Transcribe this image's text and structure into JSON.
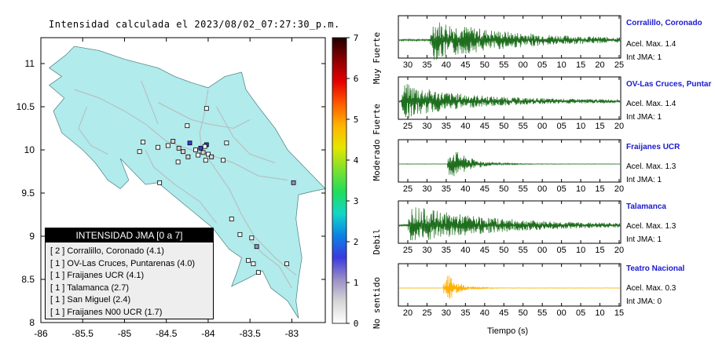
{
  "title": "Intensidad calculada el 2023/08/02_07:27:30_p.m.",
  "colors": {
    "land": "#b1ebec",
    "road": "#b9b9b9",
    "waveform_green": "#1e6e1e",
    "waveform_orange": "#ffb000",
    "station_name": "#1a1ad0"
  },
  "chart_data": [
    {
      "type": "scatter",
      "title": "Intensidad calculada el 2023/08/02_07:27:30_p.m.",
      "xlabel": "",
      "ylabel": "",
      "xlim": [
        -86,
        -82.6
      ],
      "ylim": [
        8,
        11.3
      ],
      "x_ticks": [
        "-86",
        "-85.5",
        "-85",
        "-84.5",
        "-84",
        "-83.5",
        "-83"
      ],
      "y_ticks": [
        "8",
        "8.5",
        "9",
        "9.5",
        "10",
        "10.5",
        "11"
      ],
      "marker": "square",
      "points": [
        {
          "lon": -84.48,
          "lat": 10.05,
          "intensity": 0.2
        },
        {
          "lon": -84.42,
          "lat": 10.1,
          "intensity": 0.3
        },
        {
          "lon": -84.35,
          "lat": 10.02,
          "intensity": 0.5
        },
        {
          "lon": -84.3,
          "lat": 9.98,
          "intensity": 0.8
        },
        {
          "lon": -84.22,
          "lat": 10.08,
          "intensity": 1.4
        },
        {
          "lon": -84.15,
          "lat": 10.0,
          "intensity": 0.2
        },
        {
          "lon": -84.12,
          "lat": 9.94,
          "intensity": 0.2
        },
        {
          "lon": -84.09,
          "lat": 10.02,
          "intensity": 1.6
        },
        {
          "lon": -84.06,
          "lat": 9.97,
          "intensity": 0.4
        },
        {
          "lon": -84.02,
          "lat": 10.06,
          "intensity": 1.8
        },
        {
          "lon": -84.0,
          "lat": 9.95,
          "intensity": 0.2
        },
        {
          "lon": -83.96,
          "lat": 9.92,
          "intensity": 0.3
        },
        {
          "lon": -84.04,
          "lat": 10.04,
          "intensity": 0.2
        },
        {
          "lon": -84.24,
          "lat": 9.92,
          "intensity": 0.3
        },
        {
          "lon": -84.36,
          "lat": 9.86,
          "intensity": 0.2
        },
        {
          "lon": -84.25,
          "lat": 10.28,
          "intensity": 0.2
        },
        {
          "lon": -84.02,
          "lat": 10.48,
          "intensity": 0.2
        },
        {
          "lon": -84.78,
          "lat": 10.09,
          "intensity": 0.2
        },
        {
          "lon": -84.82,
          "lat": 9.98,
          "intensity": 0.2
        },
        {
          "lon": -84.6,
          "lat": 10.03,
          "intensity": 0.2
        },
        {
          "lon": -83.82,
          "lat": 9.88,
          "intensity": 0.2
        },
        {
          "lon": -83.78,
          "lat": 10.08,
          "intensity": 0.2
        },
        {
          "lon": -84.03,
          "lat": 9.88,
          "intensity": 0.2
        },
        {
          "lon": -84.58,
          "lat": 9.62,
          "intensity": 0.2
        },
        {
          "lon": -82.98,
          "lat": 9.62,
          "intensity": 0.9
        },
        {
          "lon": -83.62,
          "lat": 9.02,
          "intensity": 0.2
        },
        {
          "lon": -83.48,
          "lat": 8.98,
          "intensity": 0.2
        },
        {
          "lon": -83.42,
          "lat": 8.88,
          "intensity": 1.2
        },
        {
          "lon": -83.52,
          "lat": 8.72,
          "intensity": 0.2
        },
        {
          "lon": -83.46,
          "lat": 8.68,
          "intensity": 0.2
        },
        {
          "lon": -83.4,
          "lat": 8.58,
          "intensity": 0.2
        },
        {
          "lon": -83.06,
          "lat": 8.68,
          "intensity": 0.2
        },
        {
          "lon": -83.72,
          "lat": 9.2,
          "intensity": 0.2
        }
      ]
    },
    {
      "type": "heatmap",
      "title": "",
      "ylim": [
        0,
        7
      ],
      "ticks": [
        "0",
        "1",
        "2",
        "3",
        "4",
        "5",
        "6",
        "7"
      ],
      "category_labels": [
        "No sentido",
        "Debil",
        "Moderado",
        "Fuerte",
        "Muy Fuerte"
      ],
      "colors": [
        "#ffffff",
        "#d6d6d6",
        "#9a8ec6",
        "#3a3ae0",
        "#0b82e6",
        "#13d6c6",
        "#22dd5a",
        "#7ee12e",
        "#e6e600",
        "#ffb400",
        "#ff5a00",
        "#e60000",
        "#8c0000",
        "#200000"
      ]
    },
    {
      "type": "line",
      "title": "Tiempo (s)",
      "xlabel": "Tiempo (s)",
      "ylabel": "",
      "series": [
        {
          "name": "Corralillo, Coronado",
          "x_ticks": [
            "30",
            "35",
            "40",
            "45",
            "50",
            "55",
            "00",
            "05",
            "10",
            "15",
            "20",
            "25"
          ],
          "onset": 0.14,
          "peak": 1.0,
          "decay": 0.35,
          "noise": 0.05,
          "color": "#1e6e1e"
        },
        {
          "name": "OV-Las Cruces, Puntar",
          "x_ticks": [
            "25",
            "30",
            "35",
            "40",
            "45",
            "50",
            "55",
            "00",
            "05",
            "10",
            "15",
            "20"
          ],
          "onset": 0.01,
          "peak": 0.85,
          "decay": 0.25,
          "noise": 0.08,
          "color": "#1e6e1e"
        },
        {
          "name": "Fraijanes UCR",
          "x_ticks": [
            "25",
            "30",
            "35",
            "40",
            "45",
            "50",
            "55",
            "00",
            "05",
            "10",
            "15",
            "20"
          ],
          "onset": 0.22,
          "peak": 1.0,
          "decay": 0.08,
          "noise": 0.01,
          "color": "#1e6e1e"
        },
        {
          "name": "Talamanca",
          "x_ticks": [
            "25",
            "30",
            "35",
            "40",
            "45",
            "50",
            "55",
            "00",
            "05",
            "10",
            "15",
            "20"
          ],
          "onset": 0.04,
          "peak": 0.95,
          "decay": 0.35,
          "noise": 0.05,
          "color": "#1e6e1e"
        },
        {
          "name": "Teatro Nacional",
          "x_ticks": [
            "20",
            "25",
            "30",
            "35",
            "40",
            "45",
            "50",
            "55",
            "00",
            "05",
            "10",
            "15"
          ],
          "onset": 0.2,
          "peak": 1.0,
          "decay": 0.05,
          "noise": 0.01,
          "color": "#ffb000"
        }
      ]
    }
  ],
  "stations": [
    {
      "name": "Corralillo, Coronado",
      "acel": "Acel. Max. 1.4",
      "int": "Int JMA: 1"
    },
    {
      "name": "OV-Las Cruces, Puntar",
      "acel": "Acel. Max. 1.4",
      "int": "Int JMA: 1"
    },
    {
      "name": "Fraijanes UCR",
      "acel": "Acel. Max. 1.3",
      "int": "Int JMA: 1"
    },
    {
      "name": "Talamanca",
      "acel": "Acel. Max. 1.3",
      "int": "Int JMA: 1"
    },
    {
      "name": "Teatro Nacional",
      "acel": "Acel. Max. 0.3",
      "int": "Int JMA: 0"
    }
  ],
  "legend": {
    "title": "INTENSIDAD JMA [0 a 7]",
    "items": [
      "[ 2 ]  Corralillo, Coronado (4.1)",
      "[ 1 ]  OV-Las Cruces, Puntarenas (4.0)",
      "[ 1 ]  Fraijanes UCR (4.1)",
      "[ 1 ]  Talamanca (2.7)",
      "[ 1 ]  San Miguel (2.4)",
      "[ 1 ]  Fraijanes N00 UCR (1.7)"
    ]
  }
}
